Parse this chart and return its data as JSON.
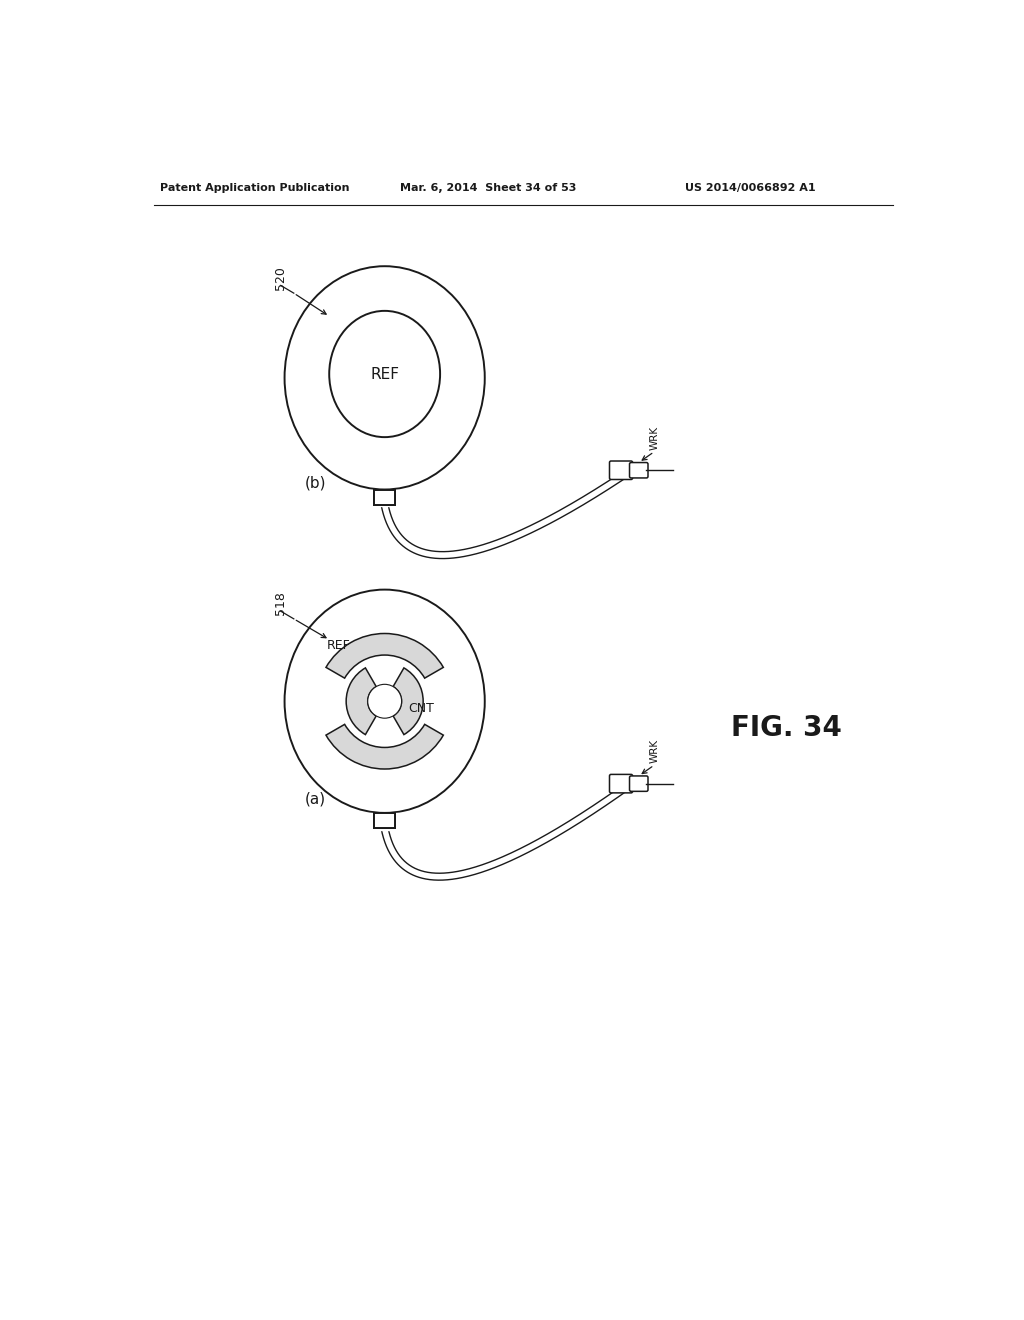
{
  "background_color": "#ffffff",
  "line_color": "#1a1a1a",
  "text_color": "#1a1a1a",
  "header_left": "Patent Application Publication",
  "header_mid": "Mar. 6, 2014  Sheet 34 of 53",
  "header_right": "US 2014/0066892 A1",
  "fig_label": "FIG. 34",
  "diagram_b_label": "520",
  "diagram_b_sub": "(b)",
  "diagram_b_ref_text": "REF",
  "diagram_a_label": "518",
  "diagram_a_sub": "(a)",
  "diagram_a_ref_text": "REF",
  "diagram_a_cnt_text": "CNT",
  "wrk_label": "WRK"
}
